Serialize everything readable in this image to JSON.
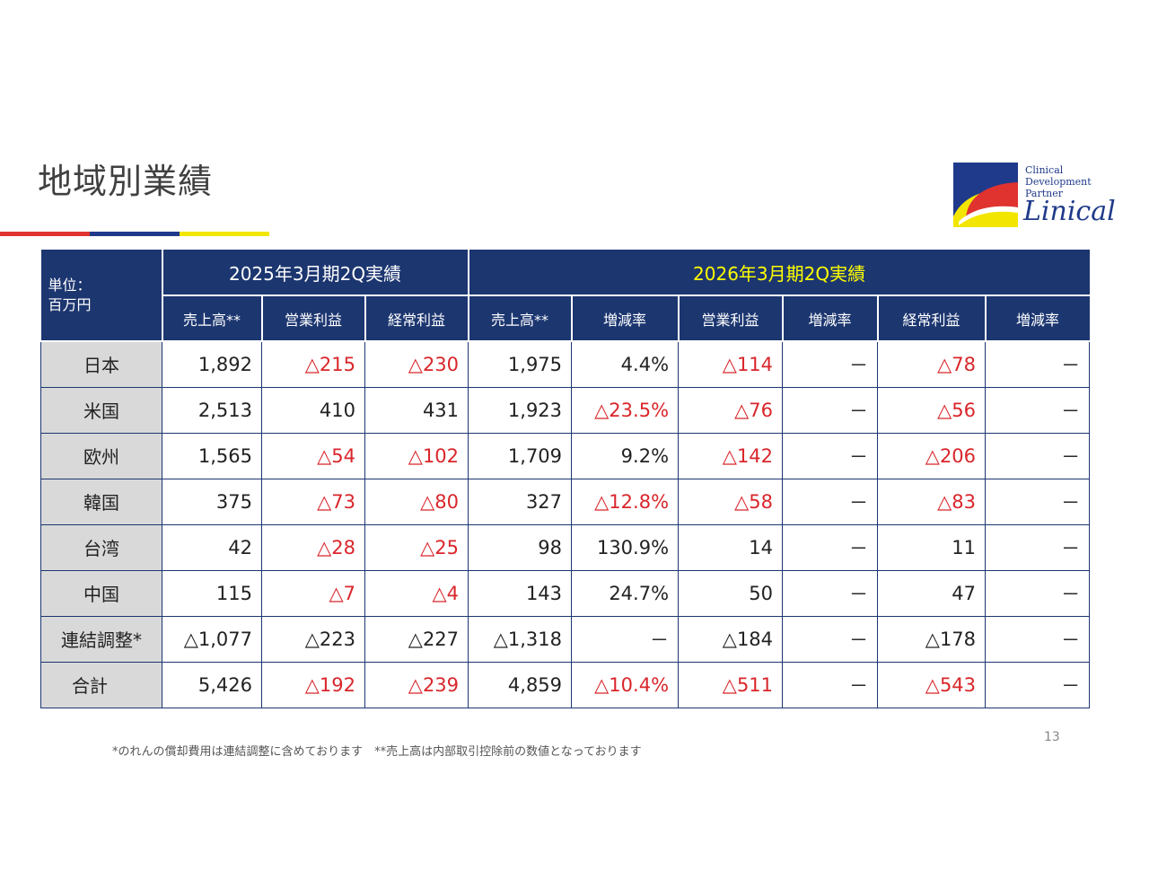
{
  "title": "地域別業績",
  "logo": {
    "tagline": [
      "Clinical",
      "Development",
      "Partner"
    ],
    "name": "Linical"
  },
  "table": {
    "unit_label": [
      "単位：",
      "百万円"
    ],
    "prev_period": "2025年3月期2Q実績",
    "curr_period": "2026年3月期2Q実績",
    "columns": [
      "売上高**",
      "営業利益",
      "経常利益",
      "売上高**",
      "増減率",
      "営業利益",
      "増減率",
      "経常利益",
      "増減率"
    ],
    "rows": [
      {
        "region": "日本",
        "cells": [
          {
            "v": "1,892",
            "neg": false
          },
          {
            "v": "△215",
            "neg": true
          },
          {
            "v": "△230",
            "neg": true
          },
          {
            "v": "1,975",
            "neg": false
          },
          {
            "v": "4.4%",
            "neg": false
          },
          {
            "v": "△114",
            "neg": true
          },
          {
            "v": "－",
            "neg": false
          },
          {
            "v": "△78",
            "neg": true
          },
          {
            "v": "－",
            "neg": false
          }
        ]
      },
      {
        "region": "米国",
        "cells": [
          {
            "v": "2,513",
            "neg": false
          },
          {
            "v": "410",
            "neg": false
          },
          {
            "v": "431",
            "neg": false
          },
          {
            "v": "1,923",
            "neg": false
          },
          {
            "v": "△23.5%",
            "neg": true
          },
          {
            "v": "△76",
            "neg": true
          },
          {
            "v": "－",
            "neg": false
          },
          {
            "v": "△56",
            "neg": true
          },
          {
            "v": "－",
            "neg": false
          }
        ]
      },
      {
        "region": "欧州",
        "cells": [
          {
            "v": "1,565",
            "neg": false
          },
          {
            "v": "△54",
            "neg": true
          },
          {
            "v": "△102",
            "neg": true
          },
          {
            "v": "1,709",
            "neg": false
          },
          {
            "v": "9.2%",
            "neg": false
          },
          {
            "v": "△142",
            "neg": true
          },
          {
            "v": "－",
            "neg": false
          },
          {
            "v": "△206",
            "neg": true
          },
          {
            "v": "－",
            "neg": false
          }
        ]
      },
      {
        "region": "韓国",
        "cells": [
          {
            "v": "375",
            "neg": false
          },
          {
            "v": "△73",
            "neg": true
          },
          {
            "v": "△80",
            "neg": true
          },
          {
            "v": "327",
            "neg": false
          },
          {
            "v": "△12.8%",
            "neg": true
          },
          {
            "v": "△58",
            "neg": true
          },
          {
            "v": "－",
            "neg": false
          },
          {
            "v": "△83",
            "neg": true
          },
          {
            "v": "－",
            "neg": false
          }
        ]
      },
      {
        "region": "台湾",
        "cells": [
          {
            "v": "42",
            "neg": false
          },
          {
            "v": "△28",
            "neg": true
          },
          {
            "v": "△25",
            "neg": true
          },
          {
            "v": "98",
            "neg": false
          },
          {
            "v": "130.9%",
            "neg": false
          },
          {
            "v": "14",
            "neg": false
          },
          {
            "v": "－",
            "neg": false
          },
          {
            "v": "11",
            "neg": false
          },
          {
            "v": "－",
            "neg": false
          }
        ]
      },
      {
        "region": "中国",
        "cells": [
          {
            "v": "115",
            "neg": false
          },
          {
            "v": "△7",
            "neg": true
          },
          {
            "v": "△4",
            "neg": true
          },
          {
            "v": "143",
            "neg": false
          },
          {
            "v": "24.7%",
            "neg": false
          },
          {
            "v": "50",
            "neg": false
          },
          {
            "v": "－",
            "neg": false
          },
          {
            "v": "47",
            "neg": false
          },
          {
            "v": "－",
            "neg": false
          }
        ]
      },
      {
        "region": "連結調整*",
        "cells": [
          {
            "v": "△1,077",
            "neg": false
          },
          {
            "v": "△223",
            "neg": false
          },
          {
            "v": "△227",
            "neg": false
          },
          {
            "v": "△1,318",
            "neg": false
          },
          {
            "v": "－",
            "neg": false
          },
          {
            "v": "△184",
            "neg": false
          },
          {
            "v": "－",
            "neg": false
          },
          {
            "v": "△178",
            "neg": false
          },
          {
            "v": "－",
            "neg": false
          }
        ]
      },
      {
        "region": "合計",
        "cells": [
          {
            "v": "5,426",
            "neg": false
          },
          {
            "v": "△192",
            "neg": true
          },
          {
            "v": "△239",
            "neg": true
          },
          {
            "v": "4,859",
            "neg": false
          },
          {
            "v": "△10.4%",
            "neg": true
          },
          {
            "v": "△511",
            "neg": true
          },
          {
            "v": "－",
            "neg": false
          },
          {
            "v": "△543",
            "neg": true
          },
          {
            "v": "－",
            "neg": false
          }
        ]
      }
    ]
  },
  "footnote": "*のれんの償却費用は連結調整に含めております　**売上高は内部取引控除前の数値となっております",
  "page_number": "13",
  "colors": {
    "header_bg": "#1c3670",
    "negative": "#d9262b",
    "current_period": "#ffff00"
  }
}
